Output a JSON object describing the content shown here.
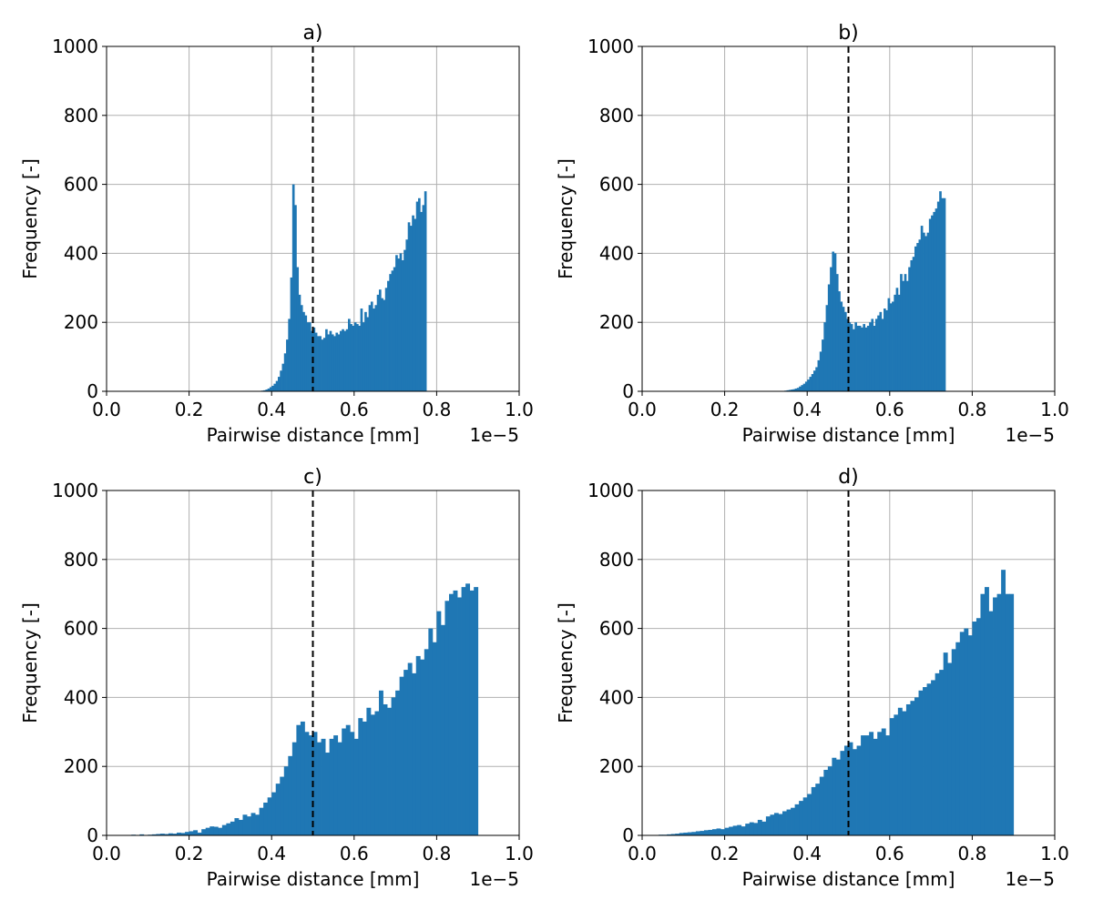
{
  "chart_data": [
    {
      "type": "bar",
      "title": "a)",
      "xlabel": "Pairwise distance [mm]",
      "ylabel": "Frequency [-]",
      "x_offset_text": "1e−5",
      "xlim": [
        0.0,
        1.0
      ],
      "ylim": [
        0,
        1000
      ],
      "x_unit_multiplier": 1e-05,
      "xticks": [
        "0.0",
        "0.2",
        "0.4",
        "0.6",
        "0.8",
        "1.0"
      ],
      "yticks": [
        "0",
        "200",
        "400",
        "600",
        "800",
        "1000"
      ],
      "grid": true,
      "reference_line_x": 0.5,
      "bin_width": 0.005,
      "values": [
        0,
        0,
        0,
        0,
        0,
        0,
        0,
        0,
        0,
        0,
        0,
        0,
        0,
        0,
        0,
        0,
        0,
        0,
        0,
        0,
        0,
        0,
        0,
        0,
        0,
        0,
        0,
        0,
        0,
        0,
        0,
        0,
        0,
        0,
        0,
        0,
        0,
        0,
        0,
        0,
        0,
        0,
        0,
        0,
        0,
        0,
        0,
        0,
        0,
        0,
        0,
        0,
        0,
        0,
        0,
        0,
        0,
        0,
        0,
        0,
        0,
        0,
        0,
        0,
        0,
        0,
        0,
        0,
        0,
        0,
        0,
        0,
        0,
        0,
        1,
        2,
        3,
        5,
        8,
        12,
        16,
        22,
        30,
        42,
        60,
        80,
        110,
        150,
        210,
        330,
        600,
        540,
        360,
        280,
        250,
        230,
        220,
        200,
        200,
        175,
        185,
        170,
        160,
        160,
        150,
        155,
        180,
        165,
        175,
        165,
        160,
        170,
        165,
        175,
        180,
        175,
        180,
        210,
        195,
        190,
        200,
        195,
        190,
        240,
        200,
        230,
        215,
        250,
        260,
        240,
        250,
        280,
        295,
        270,
        265,
        300,
        320,
        340,
        350,
        360,
        395,
        385,
        400,
        380,
        410,
        440,
        490,
        480,
        510,
        500,
        550,
        560,
        520,
        540,
        580
      ]
    },
    {
      "type": "bar",
      "title": "b)",
      "xlabel": "Pairwise distance [mm]",
      "ylabel": "Frequency [-]",
      "x_offset_text": "1e−5",
      "xlim": [
        0.0,
        1.0
      ],
      "ylim": [
        0,
        1000
      ],
      "x_unit_multiplier": 1e-05,
      "xticks": [
        "0.0",
        "0.2",
        "0.4",
        "0.6",
        "0.8",
        "1.0"
      ],
      "yticks": [
        "0",
        "200",
        "400",
        "600",
        "800",
        "1000"
      ],
      "grid": true,
      "reference_line_x": 0.5,
      "bin_width": 0.005,
      "values": [
        0,
        0,
        0,
        0,
        0,
        0,
        0,
        0,
        0,
        0,
        0,
        0,
        0,
        0,
        0,
        0,
        0,
        0,
        0,
        0,
        0,
        0,
        0,
        0,
        0,
        0,
        0,
        0,
        0,
        0,
        0,
        0,
        0,
        0,
        0,
        0,
        0,
        0,
        0,
        0,
        0,
        0,
        0,
        0,
        0,
        0,
        0,
        0,
        0,
        0,
        0,
        0,
        0,
        0,
        0,
        0,
        0,
        0,
        0,
        0,
        0,
        0,
        0,
        0,
        0,
        0,
        0,
        1,
        1,
        2,
        3,
        4,
        5,
        6,
        8,
        10,
        14,
        18,
        22,
        28,
        34,
        42,
        50,
        60,
        70,
        90,
        115,
        150,
        200,
        250,
        310,
        360,
        405,
        400,
        340,
        290,
        260,
        245,
        230,
        210,
        200,
        195,
        180,
        200,
        190,
        190,
        185,
        195,
        185,
        190,
        200,
        210,
        190,
        210,
        220,
        230,
        210,
        240,
        235,
        270,
        255,
        260,
        280,
        300,
        280,
        340,
        320,
        340,
        320,
        360,
        380,
        390,
        420,
        430,
        440,
        480,
        460,
        450,
        460,
        500,
        510,
        520,
        530,
        550,
        580,
        560,
        560
      ]
    },
    {
      "type": "bar",
      "title": "c)",
      "xlabel": "Pairwise distance [mm]",
      "ylabel": "Frequency [-]",
      "x_offset_text": "1e−5",
      "xlim": [
        0.0,
        1.0
      ],
      "ylim": [
        0,
        1000
      ],
      "x_unit_multiplier": 1e-05,
      "xticks": [
        "0.0",
        "0.2",
        "0.4",
        "0.6",
        "0.8",
        "1.0"
      ],
      "yticks": [
        "0",
        "200",
        "400",
        "600",
        "800",
        "1000"
      ],
      "grid": true,
      "reference_line_x": 0.5,
      "bin_width": 0.01,
      "values": [
        0,
        0,
        0,
        0,
        0,
        0,
        2,
        1,
        3,
        1,
        2,
        3,
        4,
        5,
        4,
        6,
        5,
        8,
        7,
        10,
        12,
        15,
        8,
        18,
        22,
        26,
        25,
        22,
        30,
        35,
        40,
        50,
        45,
        60,
        55,
        65,
        60,
        80,
        95,
        110,
        125,
        150,
        170,
        200,
        230,
        270,
        320,
        330,
        300,
        290,
        300,
        270,
        280,
        240,
        280,
        290,
        270,
        310,
        320,
        300,
        280,
        340,
        330,
        370,
        350,
        360,
        420,
        380,
        370,
        400,
        420,
        460,
        480,
        500,
        470,
        520,
        510,
        540,
        600,
        560,
        650,
        610,
        680,
        700,
        710,
        690,
        720,
        730,
        710,
        720
      ]
    },
    {
      "type": "bar",
      "title": "d)",
      "xlabel": "Pairwise distance [mm]",
      "ylabel": "Frequency [-]",
      "x_offset_text": "1e−5",
      "xlim": [
        0.0,
        1.0
      ],
      "ylim": [
        0,
        1000
      ],
      "x_unit_multiplier": 1e-05,
      "xticks": [
        "0.0",
        "0.2",
        "0.4",
        "0.6",
        "0.8",
        "1.0"
      ],
      "yticks": [
        "0",
        "200",
        "400",
        "600",
        "800",
        "1000"
      ],
      "grid": true,
      "reference_line_x": 0.5,
      "bin_width": 0.01,
      "values": [
        0,
        0,
        1,
        1,
        2,
        2,
        3,
        4,
        5,
        7,
        8,
        9,
        10,
        12,
        13,
        15,
        16,
        18,
        20,
        18,
        22,
        25,
        28,
        30,
        26,
        34,
        38,
        36,
        45,
        40,
        55,
        60,
        65,
        62,
        70,
        75,
        80,
        90,
        100,
        110,
        120,
        140,
        150,
        170,
        190,
        200,
        225,
        220,
        245,
        260,
        270,
        250,
        260,
        290,
        290,
        300,
        280,
        300,
        310,
        290,
        340,
        350,
        370,
        360,
        380,
        390,
        400,
        420,
        430,
        440,
        450,
        470,
        480,
        530,
        500,
        540,
        560,
        590,
        600,
        580,
        620,
        630,
        700,
        720,
        650,
        690,
        700,
        770,
        700,
        700
      ]
    }
  ]
}
